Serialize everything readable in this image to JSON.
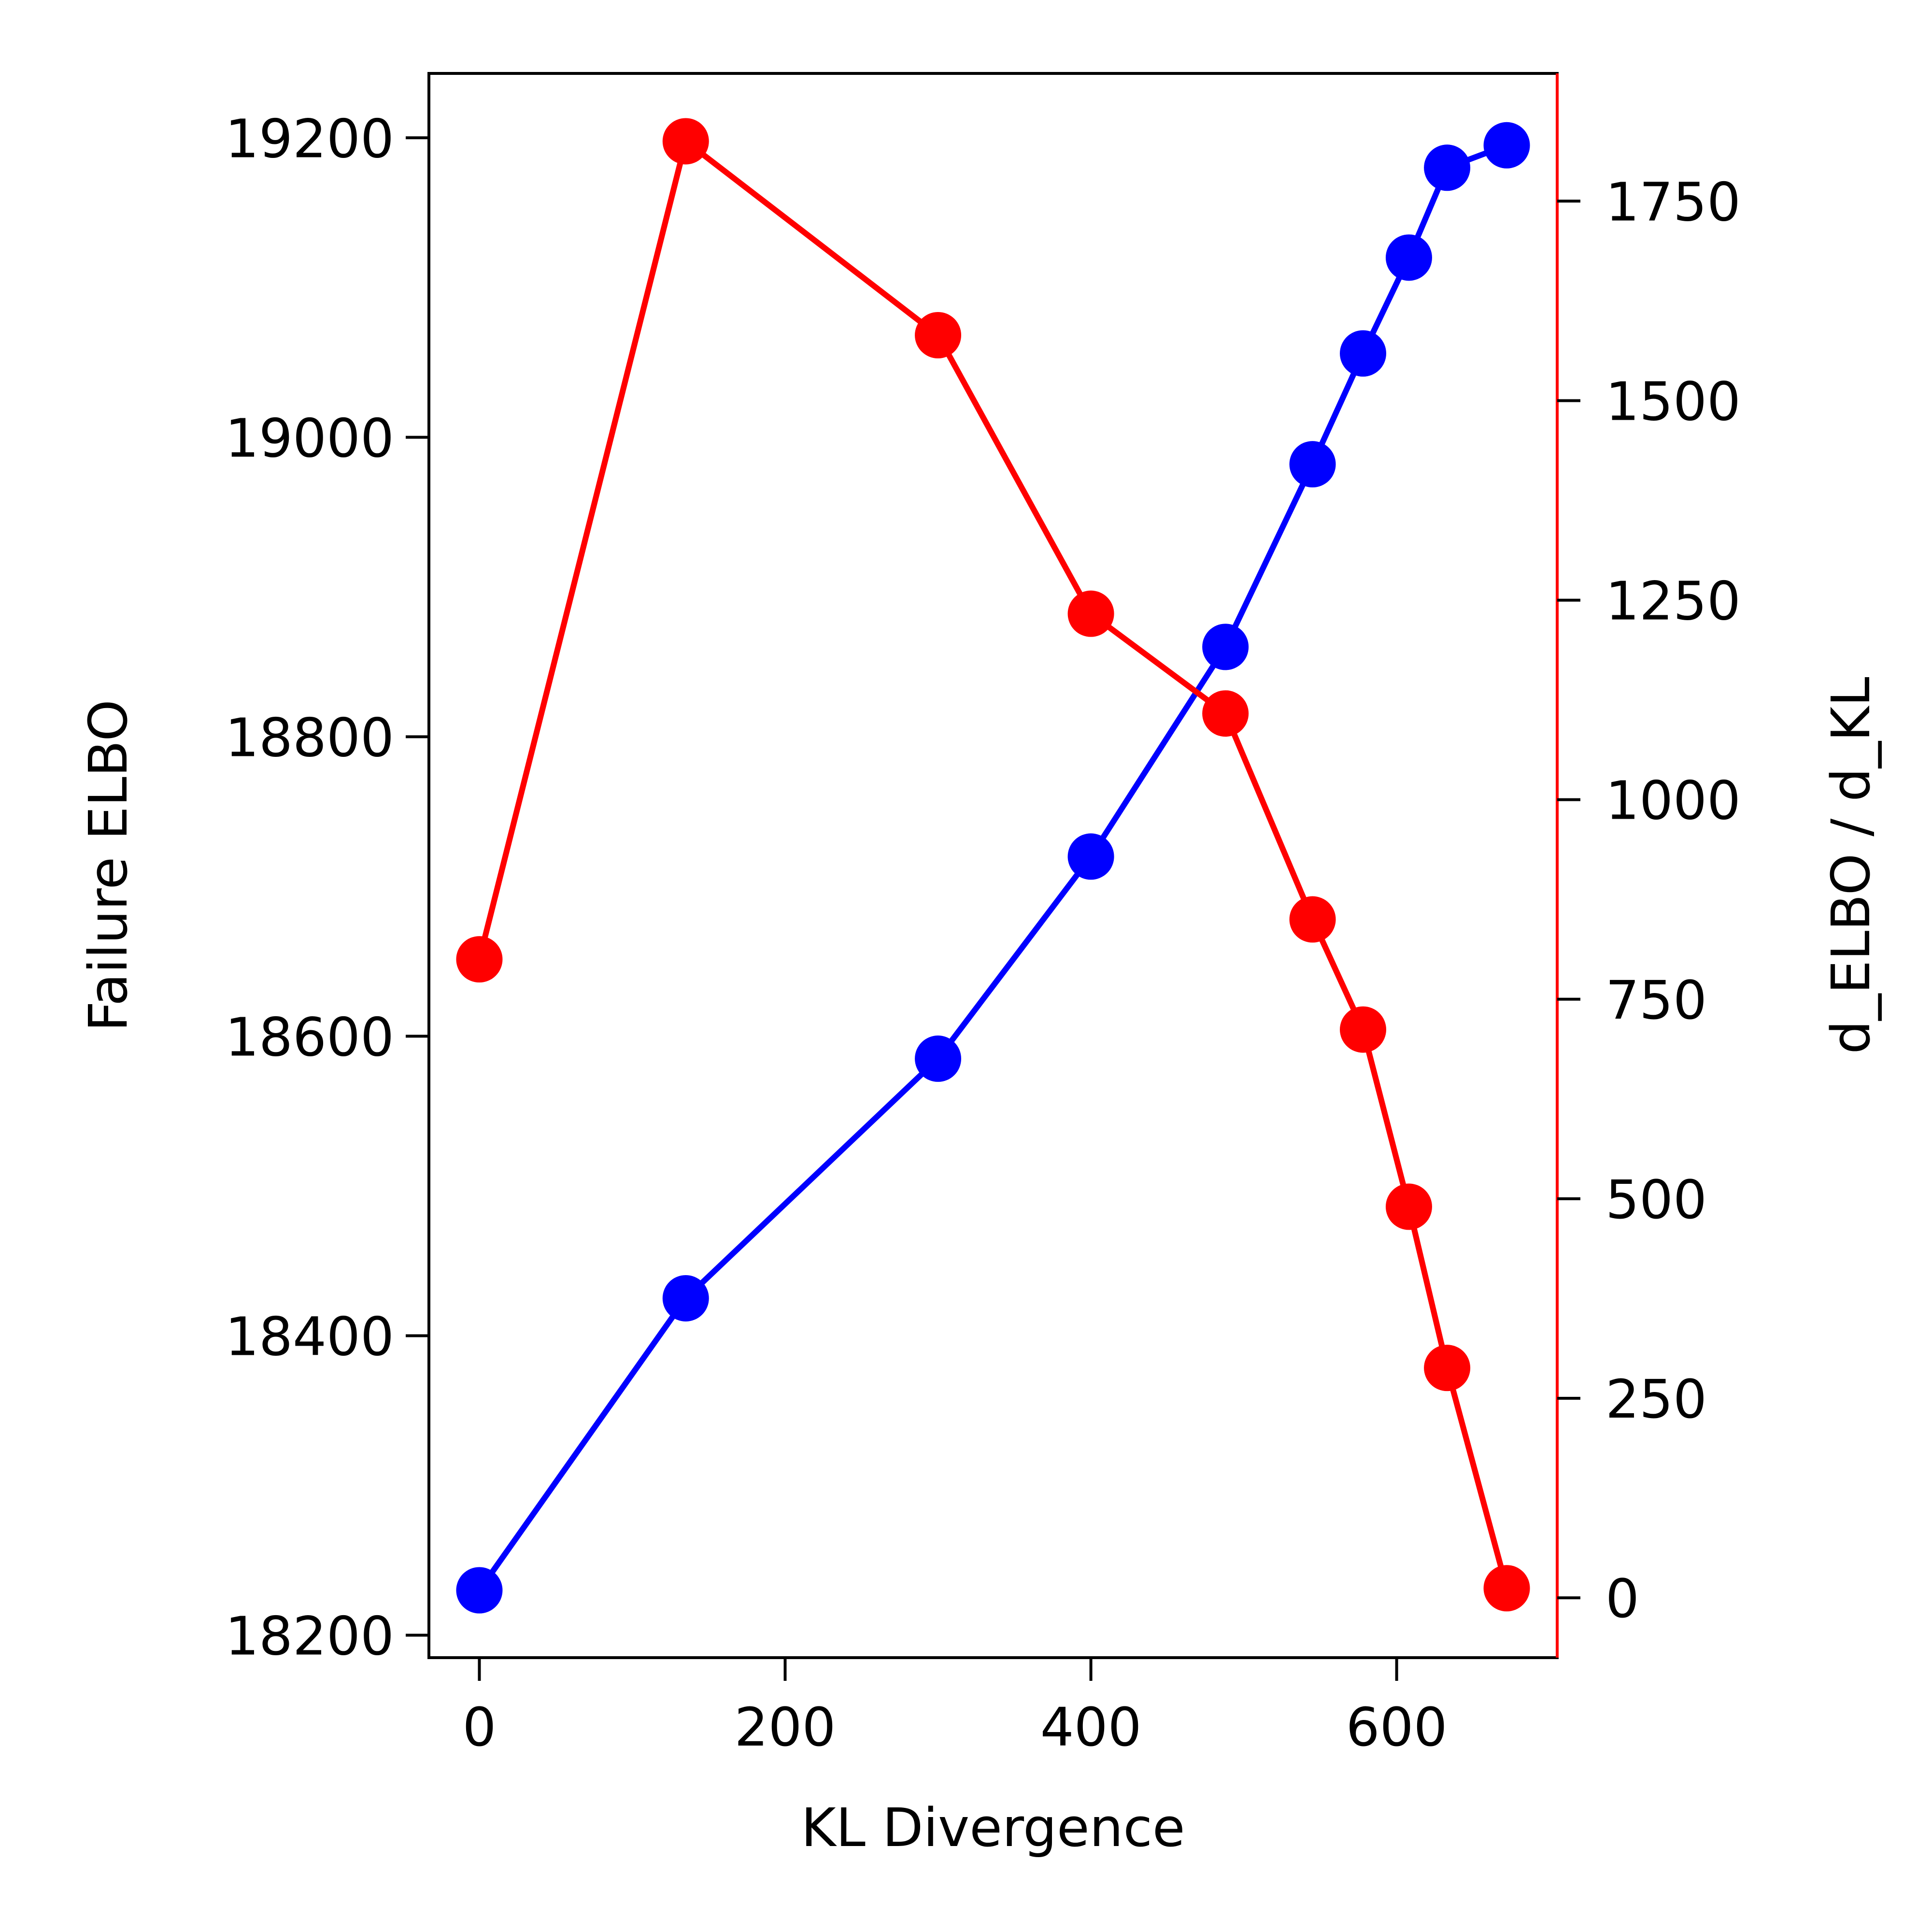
{
  "chart_data": {
    "type": "line",
    "title": "",
    "xlabel": "KL Divergence",
    "ylabel": "Failure ELBO",
    "y2label": "d_ELBO / d_KL",
    "xlim": [
      -33,
      705
    ],
    "ylim": [
      18185,
      19243
    ],
    "y2lim": [
      -75,
      1910
    ],
    "x_ticks": [
      0,
      200,
      400,
      600
    ],
    "y_ticks": [
      18200,
      18400,
      18600,
      18800,
      19000,
      19200
    ],
    "y2_ticks": [
      0,
      250,
      500,
      750,
      1000,
      1250,
      1500,
      1750
    ],
    "grid": false,
    "legend": "none",
    "series": [
      {
        "axis": "left",
        "color": "#0000ff",
        "marker": "circle",
        "x": [
          0,
          135,
          300,
          400,
          488,
          545,
          578,
          608,
          633,
          672
        ],
        "y": [
          18230,
          18425,
          18585,
          18720,
          18860,
          18982,
          19056,
          19120,
          19180,
          19195
        ]
      },
      {
        "axis": "right",
        "color": "#ff0000",
        "marker": "circle",
        "x": [
          0,
          135,
          300,
          400,
          488,
          545,
          578,
          608,
          633,
          672
        ],
        "y": [
          800,
          1825,
          1582,
          1233,
          1108,
          850,
          712,
          490,
          288,
          12
        ]
      }
    ]
  }
}
